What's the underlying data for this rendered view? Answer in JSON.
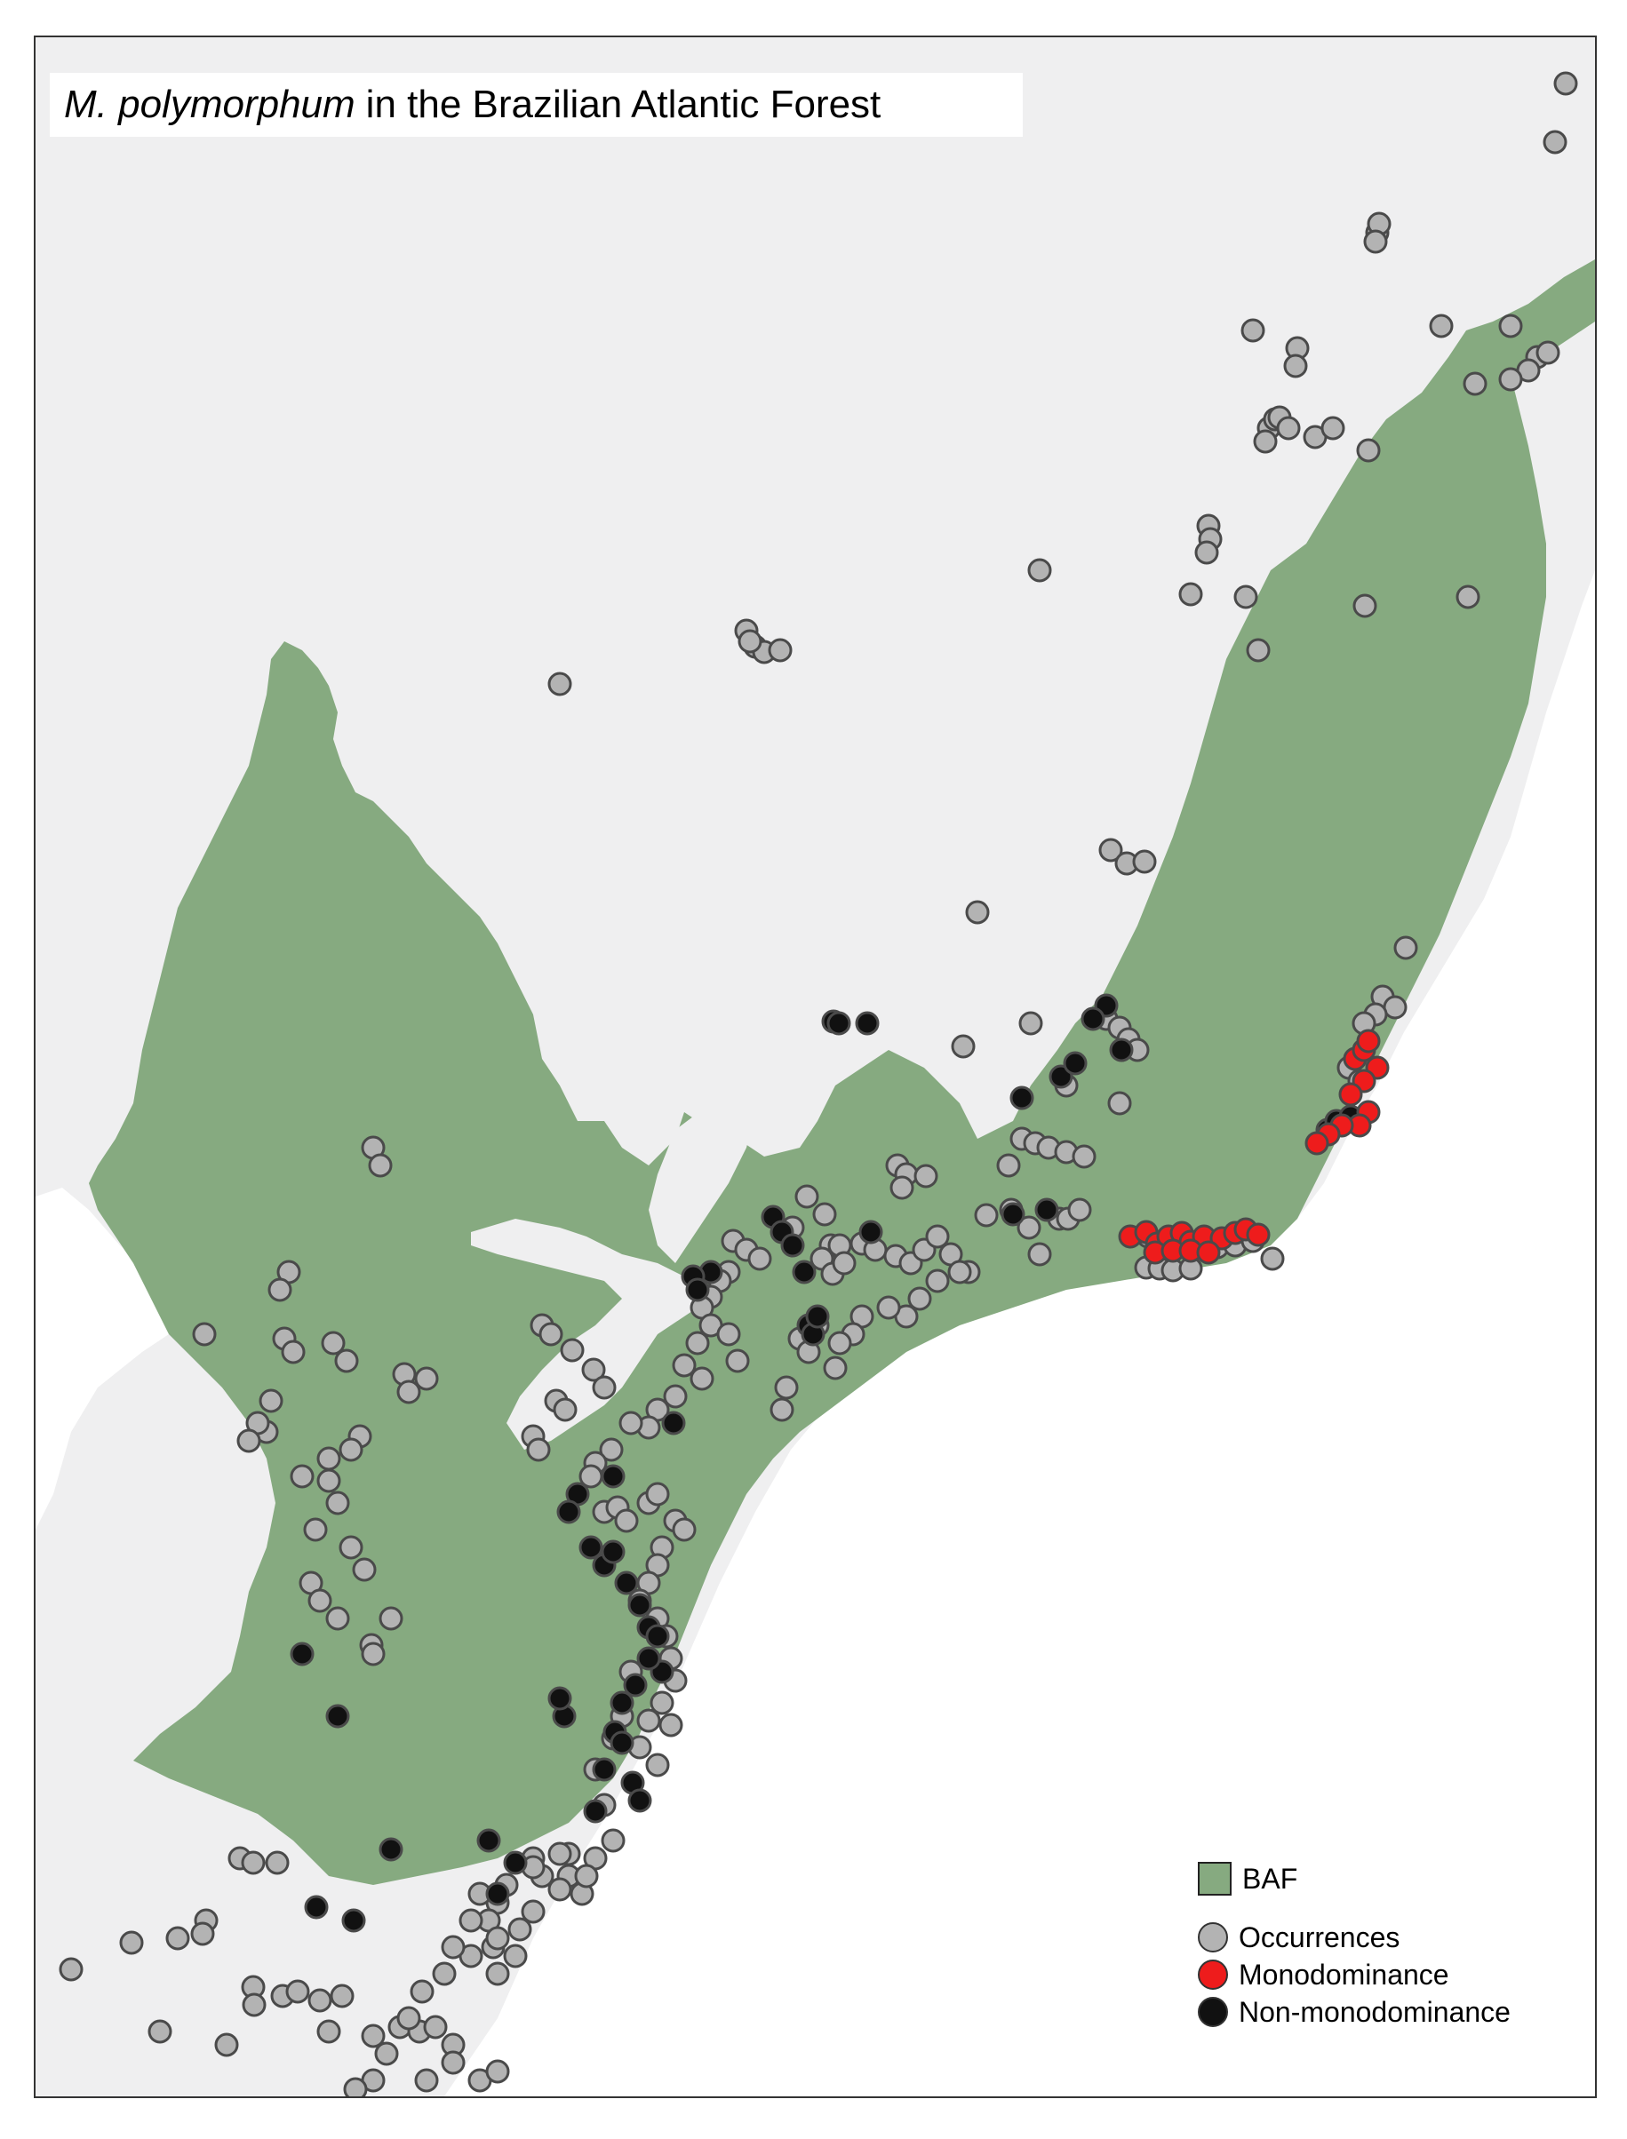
{
  "title": {
    "species": "M. polymorphum",
    "rest": "in the Brazilian Atlantic Forest"
  },
  "colors": {
    "land": "#efeff0",
    "ocean": "#ffffff",
    "baf": "#86aa80",
    "occurrences": "#b3b3b3",
    "monodominance": "#ee1c1c",
    "non_monodominance": "#111111",
    "point_stroke": "#4a4a4a"
  },
  "legend": {
    "baf": "BAF",
    "occurrences": "Occurrences",
    "monodominance": "Monodominance",
    "non_monodominance": "Non-monodominance"
  }
}
